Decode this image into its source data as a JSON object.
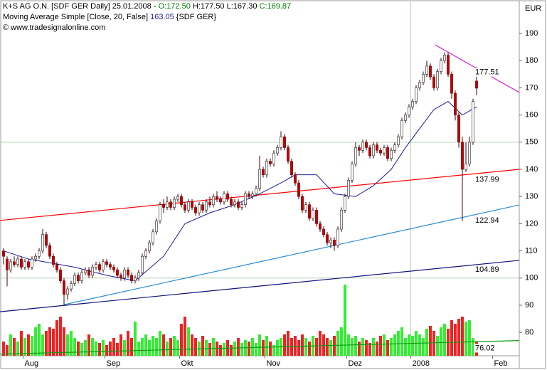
{
  "chart_data": {
    "type": "candlestick",
    "header": {
      "title": "K+S AG O.N. [SDF GER  Daily] 25.01.2008 -",
      "open": "O:172.50",
      "high": "H:177.50",
      "low": "L:167.30",
      "close": "C:169.87",
      "indicator": "Moving Average Simple [Close, 20, False]",
      "indicator_value": "163.05",
      "indicator_suffix": "{SDF GER}",
      "copyright": "© www.tradesignalonline.com"
    },
    "y_unit": "EUR",
    "xlim": [
      -1,
      145
    ],
    "ylim": [
      71.4,
      201.8
    ],
    "yticks": [
      80,
      90,
      100,
      110,
      120,
      130,
      140,
      150,
      160,
      170,
      180,
      190
    ],
    "xticks": [
      {
        "value": 5.5,
        "label": "Aug"
      },
      {
        "value": 28.5,
        "label": "Sep"
      },
      {
        "value": 49.5,
        "label": "Okt"
      },
      {
        "value": 73.5,
        "label": "Nov"
      },
      {
        "value": 96.5,
        "label": "Dez"
      },
      {
        "value": 114.5,
        "label": "2008"
      },
      {
        "value": 137.5,
        "label": "Feb"
      }
    ],
    "grid_y": [
      100,
      150
    ],
    "grid_x": [
      114.5
    ],
    "up_color": "#ffffff",
    "down_color": "#c00000",
    "candles": [
      [
        110,
        111,
        105,
        108
      ],
      [
        107,
        108,
        97,
        103
      ],
      [
        103,
        107,
        102,
        106
      ],
      [
        106,
        108,
        104,
        105
      ],
      [
        105,
        108,
        104,
        107
      ],
      [
        107,
        108,
        103,
        104
      ],
      [
        104,
        107,
        103,
        106
      ],
      [
        106,
        107,
        103,
        104
      ],
      [
        104,
        108,
        103,
        107
      ],
      [
        107,
        109,
        106,
        108
      ],
      [
        108,
        111,
        107,
        110
      ],
      [
        110,
        118,
        109,
        116
      ],
      [
        116,
        117,
        111,
        112
      ],
      [
        112,
        113,
        107,
        108
      ],
      [
        108,
        109,
        104,
        105
      ],
      [
        105,
        106,
        102,
        103
      ],
      [
        103,
        104,
        98,
        99
      ],
      [
        99,
        100,
        90,
        94
      ],
      [
        94,
        97,
        92,
        96
      ],
      [
        96,
        99,
        95,
        98
      ],
      [
        98,
        102,
        97,
        101
      ],
      [
        101,
        102,
        98,
        99
      ],
      [
        99,
        103,
        98,
        102
      ],
      [
        102,
        104,
        101,
        103
      ],
      [
        103,
        104,
        100,
        101
      ],
      [
        101,
        105,
        100,
        104
      ],
      [
        104,
        106,
        103,
        105
      ],
      [
        105,
        106,
        102,
        103
      ],
      [
        103,
        107,
        102,
        106
      ],
      [
        106,
        107,
        104,
        105
      ],
      [
        105,
        106,
        103,
        104
      ],
      [
        104,
        105,
        102,
        103
      ],
      [
        103,
        104,
        100,
        101
      ],
      [
        101,
        102,
        99,
        100
      ],
      [
        100,
        104,
        99,
        103
      ],
      [
        103,
        104,
        100,
        101
      ],
      [
        101,
        102,
        98,
        99
      ],
      [
        99,
        101,
        98,
        100
      ],
      [
        100,
        103,
        99,
        102
      ],
      [
        102,
        109,
        101,
        108
      ],
      [
        108,
        111,
        107,
        110
      ],
      [
        110,
        114,
        109,
        113
      ],
      [
        113,
        118,
        112,
        117
      ],
      [
        117,
        122,
        116,
        121
      ],
      [
        121,
        128,
        120,
        127
      ],
      [
        127,
        129,
        124,
        126
      ],
      [
        126,
        130,
        125,
        128
      ],
      [
        128,
        129,
        125,
        126
      ],
      [
        126,
        130,
        125,
        129
      ],
      [
        129,
        131,
        128,
        130
      ],
      [
        130,
        131,
        126,
        127
      ],
      [
        127,
        128,
        124,
        125
      ],
      [
        125,
        129,
        124,
        128
      ],
      [
        128,
        129,
        125,
        126
      ],
      [
        126,
        127,
        123,
        124
      ],
      [
        124,
        128,
        123,
        127
      ],
      [
        127,
        128,
        124,
        125
      ],
      [
        125,
        129,
        124,
        128
      ],
      [
        128,
        130,
        126,
        127
      ],
      [
        127,
        131,
        126,
        130
      ],
      [
        130,
        132,
        128,
        129
      ],
      [
        129,
        130,
        127,
        128
      ],
      [
        128,
        132,
        127,
        131
      ],
      [
        131,
        132,
        128,
        129
      ],
      [
        129,
        130,
        126,
        127
      ],
      [
        127,
        129,
        126,
        128
      ],
      [
        128,
        129,
        125,
        126
      ],
      [
        126,
        128,
        125,
        127
      ],
      [
        127,
        132,
        126,
        131
      ],
      [
        131,
        132,
        129,
        130
      ],
      [
        130,
        132,
        129,
        131
      ],
      [
        131,
        134,
        130,
        133
      ],
      [
        133,
        145,
        132,
        140
      ],
      [
        140,
        141,
        137,
        138
      ],
      [
        138,
        144,
        137,
        143
      ],
      [
        143,
        144,
        141,
        142
      ],
      [
        142,
        147,
        141,
        146
      ],
      [
        146,
        149,
        145,
        148
      ],
      [
        148,
        154,
        147,
        152
      ],
      [
        152,
        153,
        147,
        148
      ],
      [
        148,
        149,
        142,
        143
      ],
      [
        143,
        144,
        137,
        138
      ],
      [
        138,
        139,
        134,
        135
      ],
      [
        135,
        136,
        129,
        130
      ],
      [
        130,
        131,
        124,
        125
      ],
      [
        125,
        128,
        124,
        127
      ],
      [
        127,
        128,
        121,
        122
      ],
      [
        122,
        126,
        121,
        125
      ],
      [
        125,
        126,
        119,
        120
      ],
      [
        120,
        121,
        117,
        118
      ],
      [
        118,
        119,
        115,
        116
      ],
      [
        116,
        117,
        112,
        113
      ],
      [
        113,
        115,
        111,
        114
      ],
      [
        114,
        115,
        110,
        112
      ],
      [
        112,
        119,
        111,
        118
      ],
      [
        118,
        126,
        117,
        125
      ],
      [
        125,
        131,
        124,
        130
      ],
      [
        130,
        137,
        129,
        136
      ],
      [
        136,
        143,
        135,
        142
      ],
      [
        142,
        150,
        141,
        148
      ],
      [
        148,
        149,
        145,
        147
      ],
      [
        147,
        151,
        146,
        150
      ],
      [
        150,
        151,
        147,
        148
      ],
      [
        148,
        149,
        144,
        145
      ],
      [
        145,
        150,
        144,
        149
      ],
      [
        149,
        150,
        146,
        147
      ],
      [
        147,
        148,
        145,
        146
      ],
      [
        146,
        149,
        145,
        148
      ],
      [
        148,
        149,
        143,
        144
      ],
      [
        144,
        148,
        143,
        147
      ],
      [
        147,
        150,
        146,
        149
      ],
      [
        149,
        153,
        148,
        152
      ],
      [
        152,
        159,
        151,
        158
      ],
      [
        158,
        161,
        157,
        160
      ],
      [
        160,
        164,
        159,
        163
      ],
      [
        163,
        166,
        162,
        165
      ],
      [
        165,
        171,
        164,
        170
      ],
      [
        170,
        173,
        169,
        172
      ],
      [
        172,
        176,
        171,
        175
      ],
      [
        175,
        180,
        174,
        178
      ],
      [
        178,
        179,
        173,
        174
      ],
      [
        174,
        175,
        169,
        170
      ],
      [
        170,
        177,
        169,
        176
      ],
      [
        176,
        181,
        175,
        180
      ],
      [
        180,
        183,
        179,
        182
      ],
      [
        182,
        183,
        174,
        175
      ],
      [
        175,
        176,
        166,
        168
      ],
      [
        168,
        169,
        158,
        160
      ],
      [
        160,
        161,
        148,
        150
      ],
      [
        150,
        152,
        121,
        140
      ],
      [
        140,
        150,
        139,
        142
      ],
      [
        142,
        152,
        141,
        150
      ],
      [
        150,
        166,
        149,
        165
      ],
      [
        172.5,
        177.5,
        167.3,
        169.87
      ]
    ],
    "volume_lim": [
      0,
      100
    ],
    "volume": [
      20,
      15,
      30,
      25,
      20,
      35,
      25,
      30,
      28,
      40,
      45,
      30,
      35,
      40,
      38,
      50,
      55,
      40,
      30,
      35,
      25,
      20,
      18,
      22,
      30,
      25,
      20,
      18,
      22,
      15,
      20,
      25,
      18,
      30,
      22,
      35,
      25,
      48,
      20,
      25,
      30,
      22,
      28,
      25,
      35,
      30,
      20,
      25,
      28,
      22,
      45,
      55,
      40,
      30,
      25,
      20,
      28,
      22,
      18,
      25,
      20,
      15,
      18,
      22,
      15,
      20,
      25,
      18,
      22,
      20,
      25,
      18,
      30,
      22,
      28,
      20,
      15,
      22,
      25,
      30,
      35,
      25,
      28,
      22,
      30,
      25,
      20,
      28,
      25,
      35,
      30,
      25,
      22,
      28,
      35,
      40,
      100,
      30,
      25,
      28,
      20,
      25,
      22,
      18,
      25,
      20,
      28,
      30,
      22,
      25,
      30,
      35,
      40,
      25,
      30,
      28,
      35,
      30,
      25,
      38,
      42,
      35,
      28,
      40,
      45,
      38,
      50,
      45,
      52,
      55,
      48,
      50,
      25,
      20
    ],
    "volume_up_color": "#33ee33",
    "volume_down_color": "#ee2222",
    "moving_average": {
      "color": "#1a1aa0",
      "x": [
        0,
        7,
        20,
        29,
        37,
        45,
        51,
        58,
        65,
        72,
        78,
        82,
        88,
        93,
        99,
        104,
        109,
        113,
        117,
        121,
        125,
        129,
        133
      ],
      "values": [
        110,
        107,
        104,
        101,
        99,
        108,
        120,
        124,
        127,
        131,
        135,
        138,
        138,
        131,
        130,
        134,
        140,
        148,
        155,
        162,
        165,
        160,
        163
      ]
    },
    "trendlines": [
      {
        "color": "#ff0000",
        "x": [
          -1,
          145
        ],
        "values": [
          121.2,
          140
        ],
        "label": 137.99
      },
      {
        "color": "#2a8ad8",
        "x": [
          17,
          145
        ],
        "values": [
          90.2,
          126.9
        ],
        "label": 122.94
      },
      {
        "color": "#10107a",
        "x": [
          -1,
          145
        ],
        "values": [
          87.6,
          106.5
        ],
        "label": 104.89
      },
      {
        "color": "#e020d8",
        "x": [
          121.4,
          145
        ],
        "values": [
          185.8,
          168.3
        ],
        "label": 177.51
      },
      {
        "color": "#119911",
        "x": [
          -1,
          145
        ],
        "values": [
          72,
          77
        ],
        "label": 76.02
      }
    ]
  }
}
